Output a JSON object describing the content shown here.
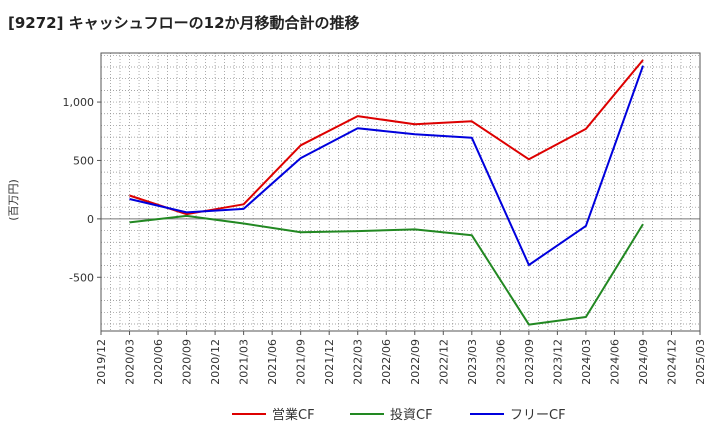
{
  "chart_data": {
    "type": "line",
    "title": "[9272]  キャッシュフローの12か月移動合計の推移",
    "ylabel": "(百万円)",
    "xlabel": "",
    "ylim": [
      -960,
      1420
    ],
    "yticks": [
      -500,
      0,
      500,
      1000
    ],
    "ytick_labels": [
      "-500",
      "0",
      "500",
      "1,000"
    ],
    "categories": [
      "2019/12",
      "2020/03",
      "2020/06",
      "2020/09",
      "2020/12",
      "2021/03",
      "2021/06",
      "2021/09",
      "2021/12",
      "2022/03",
      "2022/06",
      "2022/09",
      "2022/12",
      "2023/03",
      "2023/06",
      "2023/09",
      "2023/12",
      "2024/03",
      "2024/06",
      "2024/09",
      "2024/12",
      "2025/03"
    ],
    "grid": true,
    "legend_position": "bottom",
    "series": [
      {
        "name": "営業CF",
        "color": "#dd0000",
        "values": [
          null,
          200,
          null,
          40,
          null,
          125,
          null,
          630,
          null,
          880,
          null,
          810,
          null,
          835,
          null,
          510,
          null,
          770,
          null,
          1360,
          null,
          null
        ]
      },
      {
        "name": "投資CF",
        "color": "#228822",
        "values": [
          null,
          -30,
          null,
          25,
          null,
          -40,
          null,
          -115,
          null,
          -105,
          null,
          -90,
          null,
          -140,
          null,
          -905,
          null,
          -840,
          null,
          -45,
          null,
          null
        ]
      },
      {
        "name": "フリーCF",
        "color": "#0000dd",
        "values": [
          null,
          170,
          null,
          55,
          null,
          85,
          null,
          520,
          null,
          775,
          null,
          725,
          null,
          695,
          null,
          -395,
          null,
          -60,
          null,
          1310,
          null,
          null
        ]
      }
    ]
  }
}
